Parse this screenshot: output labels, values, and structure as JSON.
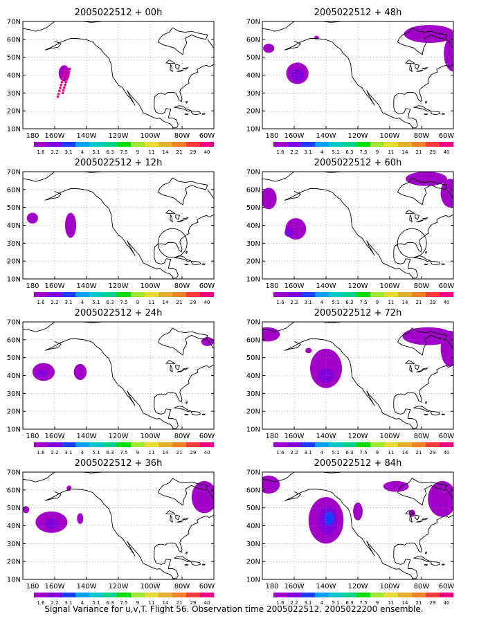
{
  "figure": {
    "footer": "Signal Variance for u,v,T. Flight 56. Observation time 2005022512. 2005022200 ensemble."
  },
  "axes": {
    "lat_labels": [
      "70N",
      "60N",
      "50N",
      "40N",
      "30N",
      "20N",
      "10N"
    ],
    "lon_labels": [
      "180",
      "160W",
      "140W",
      "120W",
      "100W",
      "80W",
      "60W"
    ]
  },
  "colorbar": {
    "labels": [
      "1.6",
      "2.2",
      "3.1",
      "4",
      "5.1",
      "6.3",
      "7.5",
      "9",
      "11",
      "14",
      "21",
      "29",
      "40"
    ],
    "colors": [
      "#a000c8",
      "#8200dc",
      "#1e3cff",
      "#00a0ff",
      "#00c8c8",
      "#00d28c",
      "#00dc00",
      "#a0e632",
      "#e6dc32",
      "#e6af2d",
      "#f08228",
      "#fa3c3c",
      "#f00082"
    ]
  },
  "panels": [
    {
      "title": "2005022512 + 00h"
    },
    {
      "title": "2005022512 + 48h"
    },
    {
      "title": "2005022512 + 12h"
    },
    {
      "title": "2005022512 + 60h"
    },
    {
      "title": "2005022512 + 24h"
    },
    {
      "title": "2005022512 + 72h"
    },
    {
      "title": "2005022512 + 36h"
    },
    {
      "title": "2005022512 + 84h"
    }
  ]
}
